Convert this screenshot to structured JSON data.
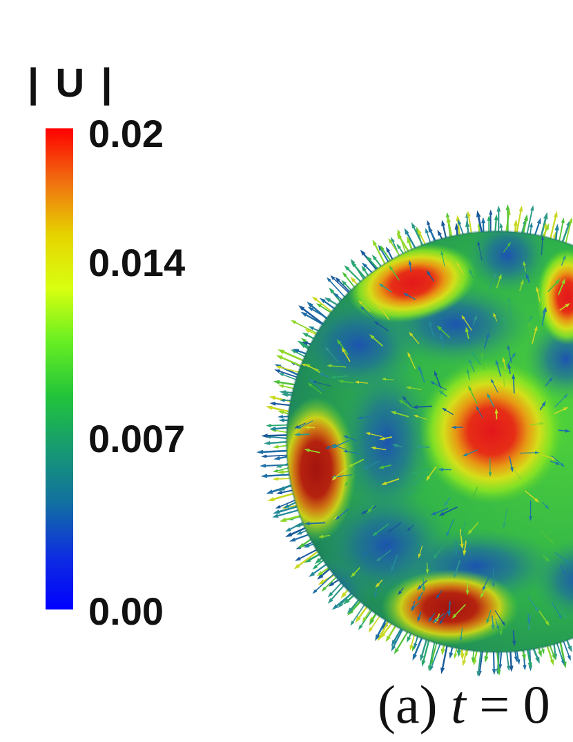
{
  "colorbar": {
    "title": "| U |",
    "ticks": [
      "0.02",
      "0.014",
      "0.007",
      "0.00"
    ],
    "colors": [
      "#ff0000",
      "#f07010",
      "#e6d400",
      "#d8ff10",
      "#66ee22",
      "#22c43a",
      "#169a72",
      "#1270a0",
      "#0e2ee0",
      "#0000ff"
    ]
  },
  "caption": {
    "label": "(a)",
    "variable": "t",
    "equals": "=",
    "value": "0"
  }
}
